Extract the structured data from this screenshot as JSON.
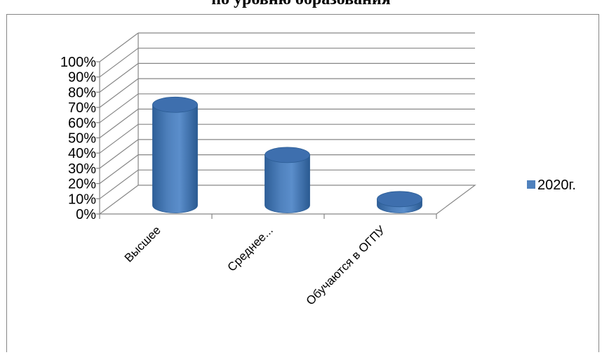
{
  "chart_data": {
    "type": "bar",
    "title": "по уровню образования",
    "categories": [
      "Высшее",
      "Среднее...",
      "Обучаются в ОГПУ"
    ],
    "series": [
      {
        "name": "2020г.",
        "values": [
          66,
          33,
          4
        ]
      }
    ],
    "y_ticks": [
      "0%",
      "10%",
      "20%",
      "30%",
      "40%",
      "50%",
      "60%",
      "70%",
      "80%",
      "90%",
      "100%"
    ],
    "ylim": [
      0,
      100
    ],
    "bar_shape": "cylinder",
    "grid": true,
    "legend_position": "right",
    "colors": {
      "bar": "#4F81BD",
      "bar_dark": "#2B5C94",
      "bar_top": "#3E6FAE",
      "grid": "#868686"
    }
  }
}
